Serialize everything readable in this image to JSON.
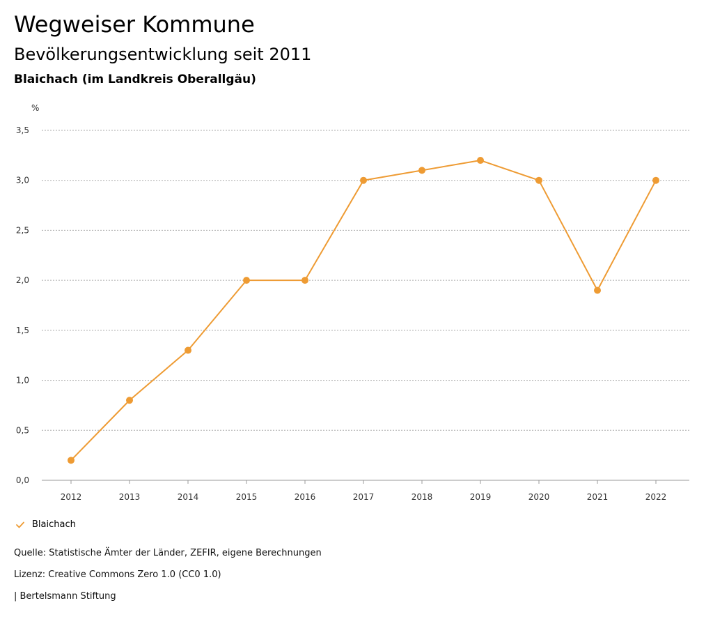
{
  "header": {
    "title": "Wegweiser Kommune",
    "subtitle": "Bevölkerungsentwicklung seit 2011",
    "region": "Blaichach (im Landkreis Oberallgäu)"
  },
  "chart_data": {
    "type": "line",
    "unit_label": "%",
    "x": [
      "2012",
      "2013",
      "2014",
      "2015",
      "2016",
      "2017",
      "2018",
      "2019",
      "2020",
      "2021",
      "2022"
    ],
    "series": [
      {
        "name": "Blaichach",
        "values": [
          0.2,
          0.8,
          1.3,
          2.0,
          2.0,
          3.0,
          3.1,
          3.2,
          3.0,
          1.9,
          3.0
        ]
      }
    ],
    "yticks": [
      "0,0",
      "0,5",
      "1,0",
      "1,5",
      "2,0",
      "2,5",
      "3,0",
      "3,5"
    ],
    "ylim": [
      0,
      3.5
    ],
    "grid": true,
    "legend": "bottom-left",
    "color": "#ee9b33"
  },
  "legend": {
    "label": "Blaichach"
  },
  "footer": {
    "source": "Quelle: Statistische Ämter der Länder, ZEFIR, eigene Berechnungen",
    "license": "Lizenz: Creative Commons Zero 1.0 (CC0 1.0)",
    "publisher": "| Bertelsmann Stiftung"
  }
}
